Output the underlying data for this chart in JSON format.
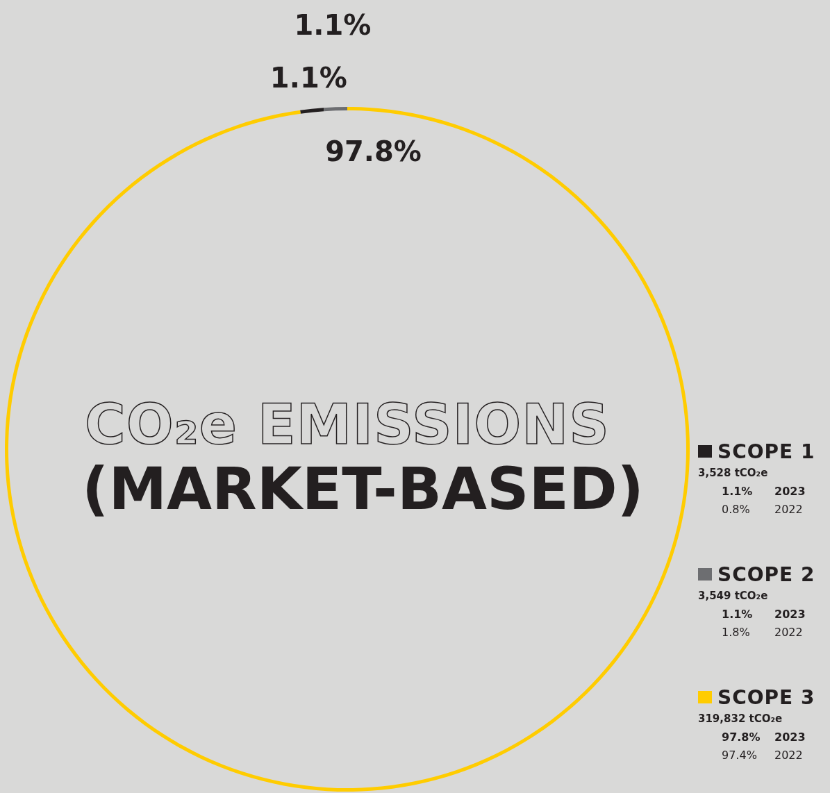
{
  "chart_data": {
    "type": "donut",
    "title": "CO₂e EMISSIONS",
    "subtitle": "(MARKET-BASED)",
    "categories": [
      "SCOPE 1",
      "SCOPE 2",
      "SCOPE 3"
    ],
    "values": [
      1.1,
      1.1,
      97.8
    ],
    "colors": [
      "#231f20",
      "#6d6e71",
      "#ffcc00"
    ],
    "value_labels": [
      "1.1%",
      "1.1%",
      "97.8%"
    ],
    "annotations": [
      "3,528 tCO₂e",
      "2023",
      "0.8%",
      "2022",
      "3,549 tCO₂e",
      "2023",
      "1.8%",
      "2022",
      "319,832 tCO₂e",
      "2023",
      "97.4%",
      "2022"
    ],
    "legend": "right"
  }
}
